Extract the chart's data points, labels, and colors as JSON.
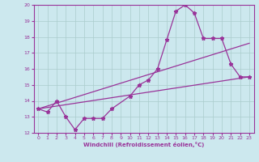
{
  "xlabel": "Windchill (Refroidissement éolien,°C)",
  "xlim": [
    -0.5,
    23.5
  ],
  "ylim": [
    12,
    20
  ],
  "xticks": [
    0,
    1,
    2,
    3,
    4,
    5,
    6,
    7,
    8,
    9,
    10,
    11,
    12,
    13,
    14,
    15,
    16,
    17,
    18,
    19,
    20,
    21,
    22,
    23
  ],
  "yticks": [
    12,
    13,
    14,
    15,
    16,
    17,
    18,
    19,
    20
  ],
  "bg_color": "#cce8ee",
  "line_color": "#993399",
  "grid_color": "#aacccc",
  "zigzag_x": [
    0,
    1,
    2,
    3,
    4,
    5,
    6,
    7,
    8,
    10,
    11,
    12,
    13,
    14,
    15,
    16,
    17,
    18,
    19,
    20,
    21,
    22,
    23
  ],
  "zigzag_y": [
    13.5,
    13.3,
    14.0,
    13.0,
    12.2,
    12.9,
    12.9,
    12.9,
    13.5,
    14.3,
    15.0,
    15.3,
    16.0,
    17.8,
    19.6,
    20.0,
    19.5,
    17.9,
    17.9,
    17.9,
    16.3,
    15.5,
    15.5
  ],
  "line1_x": [
    0,
    23
  ],
  "line1_y": [
    13.5,
    15.5
  ],
  "line2_x": [
    0,
    23
  ],
  "line2_y": [
    13.5,
    17.6
  ]
}
